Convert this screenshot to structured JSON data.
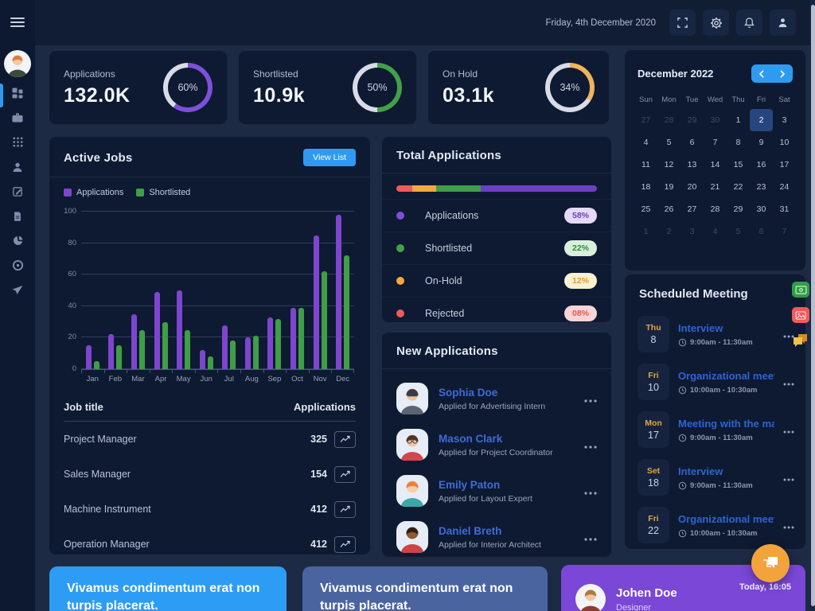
{
  "topbar": {
    "date": "Friday, 4th December 2020",
    "icons": [
      "fullscreen-icon",
      "settings-icon",
      "notifications-icon",
      "profile-icon"
    ]
  },
  "sidebar": {
    "menu_icon": "hamburger-icon",
    "items": [
      "dashboard-icon",
      "jobs-icon",
      "apps-grid-icon",
      "candidates-icon",
      "edit-icon",
      "documents-icon",
      "reports-icon",
      "records-icon",
      "messages-icon"
    ],
    "active_item": "dashboard-icon",
    "accent": "#2e9bf0"
  },
  "stats": [
    {
      "label": "Applications",
      "value": "132.0K",
      "percent": "60%",
      "color": "#7e4fd8",
      "track": "#d9dce8"
    },
    {
      "label": "Shortlisted",
      "value": "10.9k",
      "percent": "50%",
      "color": "#43a047",
      "track": "#d9dce8"
    },
    {
      "label": "On Hold",
      "value": "03.1k",
      "percent": "34%",
      "color": "#f0b45a",
      "track": "#d9dce8"
    }
  ],
  "active_jobs": {
    "title": "Active Jobs",
    "button": "View List",
    "table": {
      "headers": [
        "Job title",
        "Applications"
      ],
      "rows": [
        {
          "title": "Project Manager",
          "value": "325"
        },
        {
          "title": "Sales Manager",
          "value": "154"
        },
        {
          "title": "Machine Instrument",
          "value": "412"
        },
        {
          "title": "Operation Manager",
          "value": "412"
        }
      ]
    }
  },
  "chart_data": {
    "type": "bar",
    "title": "Active Jobs",
    "categories": [
      "Jan",
      "Feb",
      "Mar",
      "Apr",
      "May",
      "Jun",
      "Jul",
      "Aug",
      "Sep",
      "Oct",
      "Nov",
      "Dec"
    ],
    "series": [
      {
        "name": "Applications",
        "color": "#7e45cf",
        "values": [
          15,
          22,
          35,
          49,
          50,
          12,
          28,
          20,
          33,
          39,
          85,
          98
        ]
      },
      {
        "name": "Shortlisted",
        "color": "#3f9e47",
        "values": [
          5,
          15,
          25,
          30,
          25,
          8,
          18,
          21,
          32,
          39,
          62,
          72
        ]
      }
    ],
    "ylim": [
      0,
      100
    ],
    "yticks": [
      0,
      20,
      40,
      60,
      80,
      100
    ],
    "grid": true,
    "legend_position": "top-left"
  },
  "total_applications": {
    "title": "Total Applications",
    "segments": [
      {
        "label": "Rejected",
        "percent": 8,
        "color": "#f05a5a"
      },
      {
        "label": "On-Hold",
        "percent": 12,
        "color": "#f5a83c"
      },
      {
        "label": "Shortlisted",
        "percent": 22,
        "color": "#3f9e47"
      },
      {
        "label": "Applications",
        "percent": 58,
        "color": "#6d3fc8"
      }
    ],
    "items": [
      {
        "label": "Applications",
        "badge": "58%",
        "dot": "#7e4fd8",
        "badge_bg": "#e4d9f7",
        "badge_color": "#6d3fc8"
      },
      {
        "label": "Shortlisted",
        "badge": "22%",
        "dot": "#43a047",
        "badge_bg": "#d8efdc",
        "badge_color": "#2f8f3a"
      },
      {
        "label": "On-Hold",
        "badge": "12%",
        "dot": "#f5a83c",
        "badge_bg": "#fbf0cf",
        "badge_color": "#e09c2e"
      },
      {
        "label": "Rejected",
        "badge": "08%",
        "dot": "#f05a5a",
        "badge_bg": "#f9d4d4",
        "badge_color": "#e85454"
      }
    ]
  },
  "new_applications": {
    "title": "New Applications",
    "items": [
      {
        "name": "Sophia Doe",
        "subtitle": "Applied for Advertising Intern",
        "avatar": {
          "skin": "#f0c09a",
          "hair": "#3a3a42",
          "shirt": "#5a6472",
          "accessory": "sunglasses"
        }
      },
      {
        "name": "Mason Clark",
        "subtitle": "Applied for Project Coordinator",
        "avatar": {
          "skin": "#f2c4a0",
          "hair": "#4a3328",
          "shirt": "#d6454e",
          "accessory": "glasses"
        }
      },
      {
        "name": "Emily Paton",
        "subtitle": "Applied for Layout Expert",
        "avatar": {
          "skin": "#f6cdaa",
          "hair": "#e8833f",
          "shirt": "#3aa8a8",
          "accessory": ""
        }
      },
      {
        "name": "Daniel Breth",
        "subtitle": "Applied for Interior Architect",
        "avatar": {
          "skin": "#8d5a33",
          "hair": "#2f2015",
          "shirt": "#cc4444",
          "accessory": ""
        }
      }
    ]
  },
  "calendar": {
    "month": "December 2022",
    "weekdays": [
      "Sun",
      "Mon",
      "Tue",
      "Wed",
      "Thu",
      "Fri",
      "Sat"
    ],
    "days": [
      {
        "d": "27",
        "m": 1
      },
      {
        "d": "28",
        "m": 1
      },
      {
        "d": "29",
        "m": 1
      },
      {
        "d": "30",
        "m": 1
      },
      {
        "d": "1"
      },
      {
        "d": "2",
        "s": 1
      },
      {
        "d": "3"
      },
      {
        "d": "4"
      },
      {
        "d": "5"
      },
      {
        "d": "6"
      },
      {
        "d": "7"
      },
      {
        "d": "8"
      },
      {
        "d": "9"
      },
      {
        "d": "10"
      },
      {
        "d": "11"
      },
      {
        "d": "12"
      },
      {
        "d": "13"
      },
      {
        "d": "14"
      },
      {
        "d": "15"
      },
      {
        "d": "16"
      },
      {
        "d": "17"
      },
      {
        "d": "18"
      },
      {
        "d": "19"
      },
      {
        "d": "20"
      },
      {
        "d": "21"
      },
      {
        "d": "22"
      },
      {
        "d": "23"
      },
      {
        "d": "24"
      },
      {
        "d": "25"
      },
      {
        "d": "26"
      },
      {
        "d": "27"
      },
      {
        "d": "28"
      },
      {
        "d": "29"
      },
      {
        "d": "30"
      },
      {
        "d": "31"
      },
      {
        "d": "1",
        "m": 1
      },
      {
        "d": "2",
        "m": 1
      },
      {
        "d": "3",
        "m": 1
      },
      {
        "d": "4",
        "m": 1
      },
      {
        "d": "5",
        "m": 1
      },
      {
        "d": "6",
        "m": 1
      },
      {
        "d": "7",
        "m": 1
      }
    ],
    "selected_day": "2"
  },
  "scheduled_meetings": {
    "title": "Scheduled Meeting",
    "items": [
      {
        "day": "Thu",
        "date": "8",
        "title": "Interview",
        "time": "9:00am - 11:30am"
      },
      {
        "day": "Fri",
        "date": "10",
        "title": "Organizational meeting",
        "time": "10:00am - 10:30am"
      },
      {
        "day": "Mon",
        "date": "17",
        "title": "Meeting with the manager",
        "time": "9:00am - 11:30am"
      },
      {
        "day": "Set",
        "date": "18",
        "title": "Interview",
        "time": "9:00am - 11:30am"
      },
      {
        "day": "Fri",
        "date": "22",
        "title": "Organizational meeting",
        "time": "10:00am - 10:30am"
      }
    ]
  },
  "float_tools": [
    "money-icon",
    "gallery-icon",
    "chat-icon"
  ],
  "bottom": {
    "cards": [
      {
        "text": "Vivamus condimentum erat non turpis placerat.",
        "bg": "#2d9cf4"
      },
      {
        "text": "Vivamus condimentum erat non turpis placerat.",
        "bg": "#4a64a0"
      }
    ],
    "profile_card": {
      "name": "Johen Doe",
      "role": "Designer",
      "time": "Today, 16:05",
      "bg": "#7a47d6",
      "avatar": {
        "skin": "#f2c9a3",
        "hair": "#b07a3f",
        "shirt": "#8a3d34",
        "accessory": ""
      }
    }
  },
  "colors": {
    "accent_blue": "#2e9bf0",
    "purple": "#6d3fc8",
    "green": "#3f9e47",
    "orange": "#f5a83c",
    "red": "#f05a5a"
  }
}
